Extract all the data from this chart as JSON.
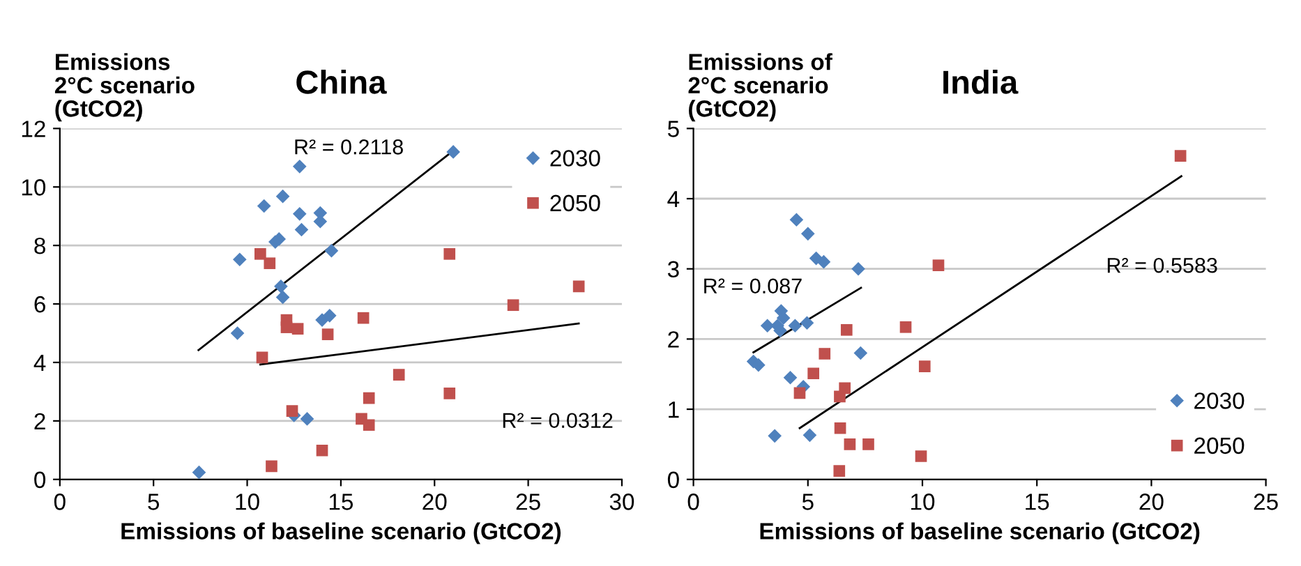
{
  "chart_data": [
    {
      "type": "scatter",
      "title": "China",
      "ylabel": "Emissions\n2°C scenario\n(GtCO2)",
      "xlabel": "Emissions of baseline scenario (GtCO2)",
      "xlim": [
        0,
        30
      ],
      "xticks": [
        0,
        5,
        10,
        15,
        20,
        25,
        30
      ],
      "ylim": [
        0,
        12
      ],
      "yticks": [
        0,
        2,
        4,
        6,
        8,
        10,
        12
      ],
      "grid": "y",
      "legend": "top right",
      "series": [
        {
          "name": "2030",
          "color": "#4f81bd",
          "marker": "diamond",
          "x": [
            7.43,
            9.6,
            9.48,
            10.9,
            11.9,
            12.8,
            12.8,
            12.9,
            13.9,
            13.9,
            11.5,
            11.7,
            14.5,
            11.8,
            11.9,
            14.0,
            14.4,
            12.5,
            13.2,
            21.0
          ],
          "values": [
            0.24,
            7.52,
            5.0,
            9.35,
            9.68,
            10.7,
            9.08,
            8.54,
            9.11,
            8.82,
            8.12,
            8.22,
            7.82,
            6.6,
            6.23,
            5.45,
            5.6,
            2.19,
            2.07,
            11.2
          ]
        },
        {
          "name": "2050",
          "color": "#c0504d",
          "marker": "square",
          "x": [
            10.7,
            11.2,
            20.8,
            27.7,
            24.2,
            16.2,
            12.1,
            12.1,
            12.7,
            14.3,
            10.8,
            18.1,
            20.8,
            16.5,
            12.4,
            16.1,
            16.5,
            14.0,
            11.3
          ],
          "values": [
            7.71,
            7.39,
            7.71,
            6.6,
            5.96,
            5.52,
            5.45,
            5.2,
            5.15,
            4.96,
            4.17,
            3.58,
            2.94,
            2.78,
            2.34,
            2.07,
            1.86,
            0.99,
            0.45
          ]
        },
        {
          "type": "line",
          "color": "#000000",
          "marker": "none",
          "x": [
            7.4,
            21.0
          ],
          "values": [
            4.42,
            11.24
          ]
        },
        {
          "type": "line",
          "color": "#000000",
          "marker": "none",
          "x": [
            10.7,
            27.7
          ],
          "values": [
            3.93,
            5.33
          ]
        }
      ],
      "annotations": [
        "R² = 0.2118",
        "R² = 0.0312"
      ]
    },
    {
      "type": "scatter",
      "title": "India",
      "ylabel": "Emissions of\n2°C scenario\n(GtCO2)",
      "xlabel": "Emissions of baseline scenario (GtCO2)",
      "xlim": [
        0,
        25
      ],
      "xticks": [
        0,
        5,
        10,
        15,
        20,
        25
      ],
      "ylim": [
        0,
        5
      ],
      "yticks": [
        0,
        1,
        2,
        3,
        4,
        5
      ],
      "grid": "y",
      "legend": "bottom right",
      "series": [
        {
          "name": "2030",
          "color": "#4f81bd",
          "marker": "diamond",
          "x": [
            4.5,
            5.0,
            5.36,
            5.69,
            7.2,
            3.83,
            3.93,
            3.23,
            3.67,
            3.79,
            4.44,
            4.96,
            2.62,
            2.84,
            7.3,
            4.23,
            4.8,
            3.55,
            5.08
          ],
          "values": [
            3.7,
            3.5,
            3.15,
            3.1,
            3.0,
            2.4,
            2.3,
            2.19,
            2.19,
            2.12,
            2.19,
            2.23,
            1.68,
            1.63,
            1.8,
            1.45,
            1.32,
            0.62,
            0.63
          ]
        },
        {
          "name": "2050",
          "color": "#c0504d",
          "marker": "square",
          "x": [
            21.27,
            10.7,
            9.27,
            6.69,
            5.73,
            10.1,
            5.24,
            4.64,
            6.61,
            6.39,
            6.41,
            6.83,
            7.64,
            9.94,
            6.37
          ],
          "values": [
            4.61,
            3.05,
            2.17,
            2.13,
            1.79,
            1.61,
            1.51,
            1.23,
            1.3,
            1.18,
            0.73,
            0.5,
            0.5,
            0.33,
            0.12
          ]
        },
        {
          "type": "line",
          "color": "#000000",
          "marker": "none",
          "x": [
            2.62,
            7.32
          ],
          "values": [
            1.81,
            2.73
          ]
        },
        {
          "type": "line",
          "color": "#000000",
          "marker": "none",
          "x": [
            4.64,
            21.31
          ],
          "values": [
            0.73,
            4.32
          ]
        }
      ],
      "annotations": [
        "R² = 0.087",
        "R² = 0.5583"
      ]
    }
  ]
}
